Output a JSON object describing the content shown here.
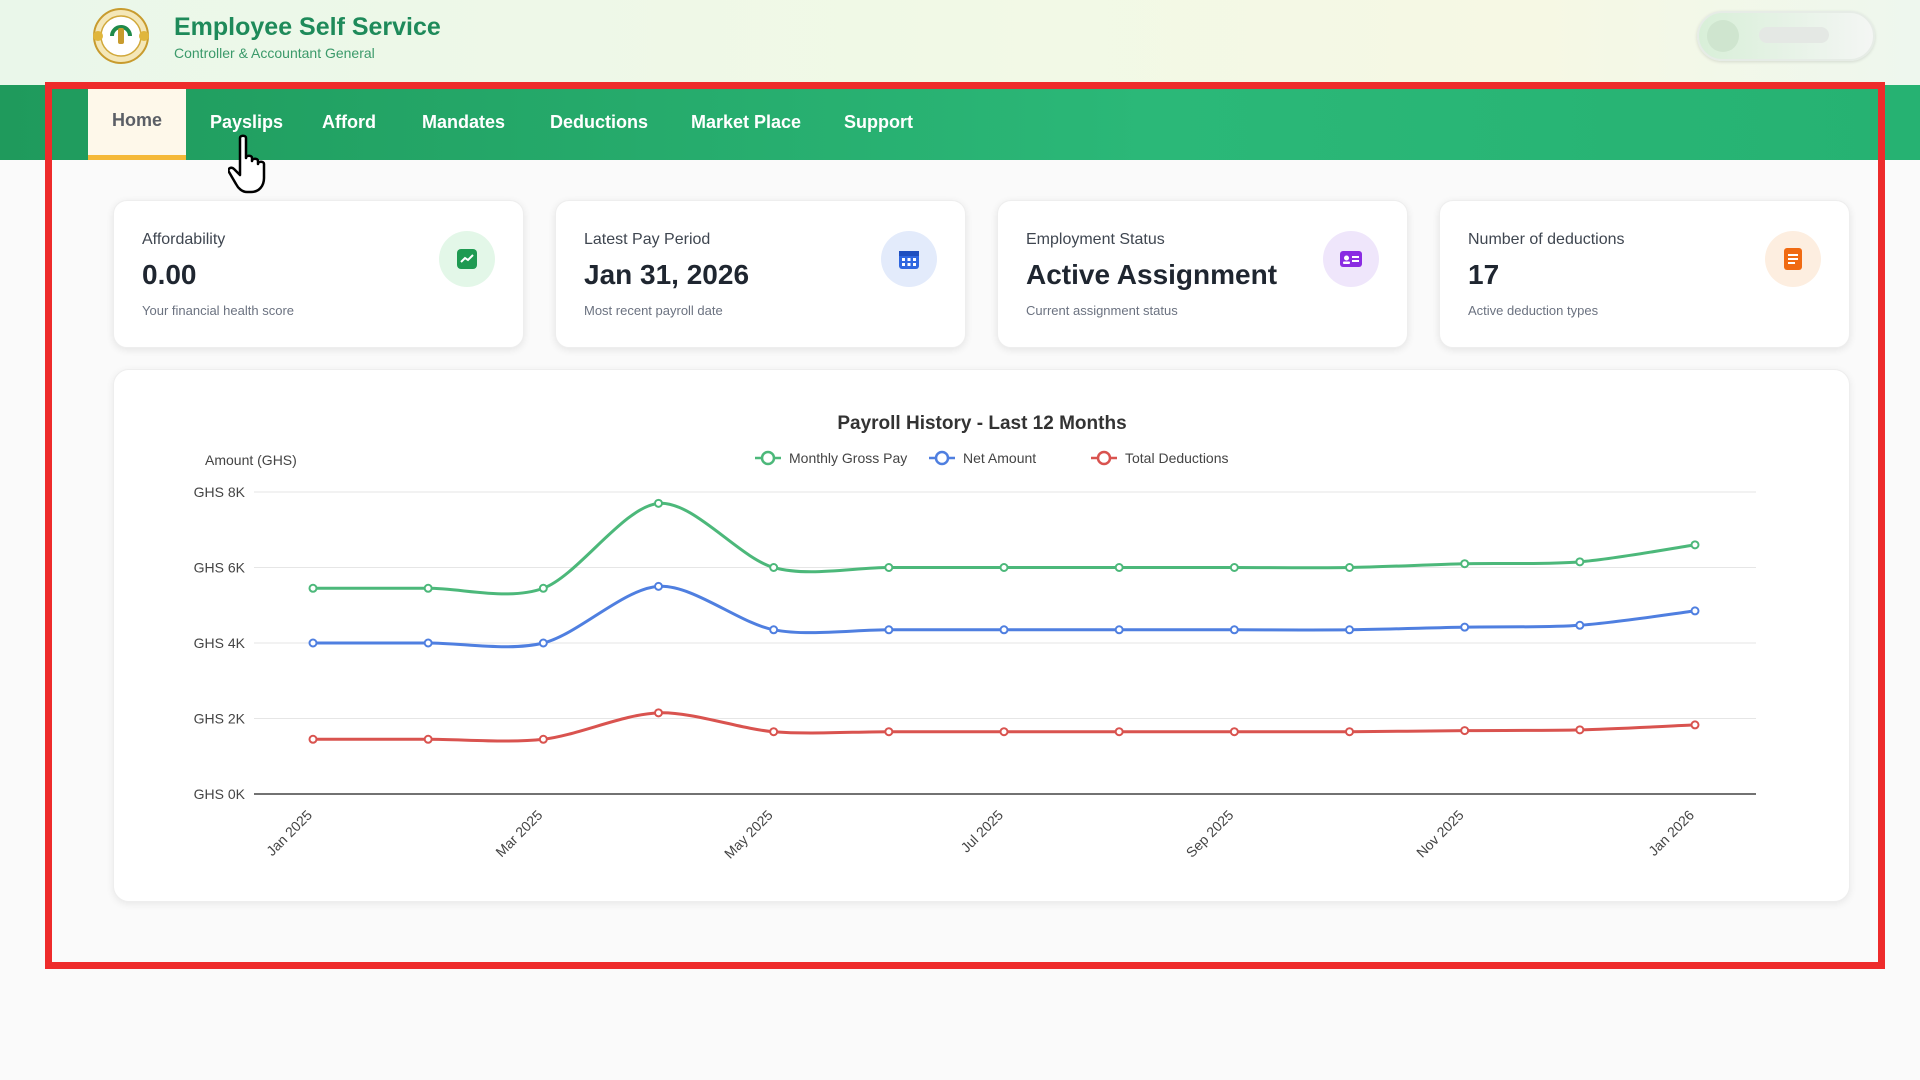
{
  "header": {
    "title": "Employee Self Service",
    "subtitle": "Controller & Accountant General"
  },
  "nav": {
    "items": [
      "Home",
      "Payslips",
      "Afford",
      "Mandates",
      "Deductions",
      "Market Place",
      "Support"
    ],
    "active": "Home"
  },
  "cards": [
    {
      "label": "Affordability",
      "value": "0.00",
      "sub": "Your financial health score",
      "icon": "trend-up-icon",
      "icon_bg": "#e3f7e8",
      "icon_color": "#1f9a52"
    },
    {
      "label": "Latest Pay Period",
      "value": "Jan 31, 2026",
      "sub": "Most recent payroll date",
      "icon": "calendar-icon",
      "icon_bg": "#e3ebfb",
      "icon_color": "#2f67e0"
    },
    {
      "label": "Employment Status",
      "value": "Active Assignment",
      "sub": "Current assignment status",
      "icon": "id-card-icon",
      "icon_bg": "#efe6fb",
      "icon_color": "#8a2be2"
    },
    {
      "label": "Number of deductions",
      "value": "17",
      "sub": "Active deduction types",
      "icon": "document-icon",
      "icon_bg": "#fdeee0",
      "icon_color": "#f06a12"
    }
  ],
  "chart_data": {
    "type": "line",
    "title": "Payroll History - Last 12 Months",
    "ylabel": "Amount (GHS)",
    "xlabel": "",
    "ylim": [
      0,
      8000
    ],
    "yticks": [
      "GHS 0K",
      "GHS 2K",
      "GHS 4K",
      "GHS 6K",
      "GHS 8K"
    ],
    "x": [
      "Jan 2025",
      "Feb 2025",
      "Mar 2025",
      "Apr 2025",
      "May 2025",
      "Jun 2025",
      "Jul 2025",
      "Aug 2025",
      "Sep 2025",
      "Oct 2025",
      "Nov 2025",
      "Dec 2025",
      "Jan 2026"
    ],
    "xtick_labels": [
      "Jan 2025",
      "Mar 2025",
      "May 2025",
      "Jul 2025",
      "Sep 2025",
      "Nov 2025",
      "Jan 2026"
    ],
    "series": [
      {
        "name": "Monthly Gross Pay",
        "color": "#4cb87a",
        "values": [
          5450,
          5450,
          5450,
          7700,
          6000,
          6000,
          6000,
          6000,
          6000,
          6000,
          6100,
          6150,
          6600
        ]
      },
      {
        "name": "Net Amount",
        "color": "#4f7fe0",
        "values": [
          4000,
          4000,
          4000,
          5500,
          4350,
          4350,
          4350,
          4350,
          4350,
          4350,
          4420,
          4470,
          4850
        ]
      },
      {
        "name": "Total Deductions",
        "color": "#d9534f",
        "values": [
          1450,
          1450,
          1450,
          2150,
          1650,
          1650,
          1650,
          1650,
          1650,
          1650,
          1680,
          1700,
          1830
        ]
      }
    ],
    "grid": true,
    "legend": "top-center"
  }
}
